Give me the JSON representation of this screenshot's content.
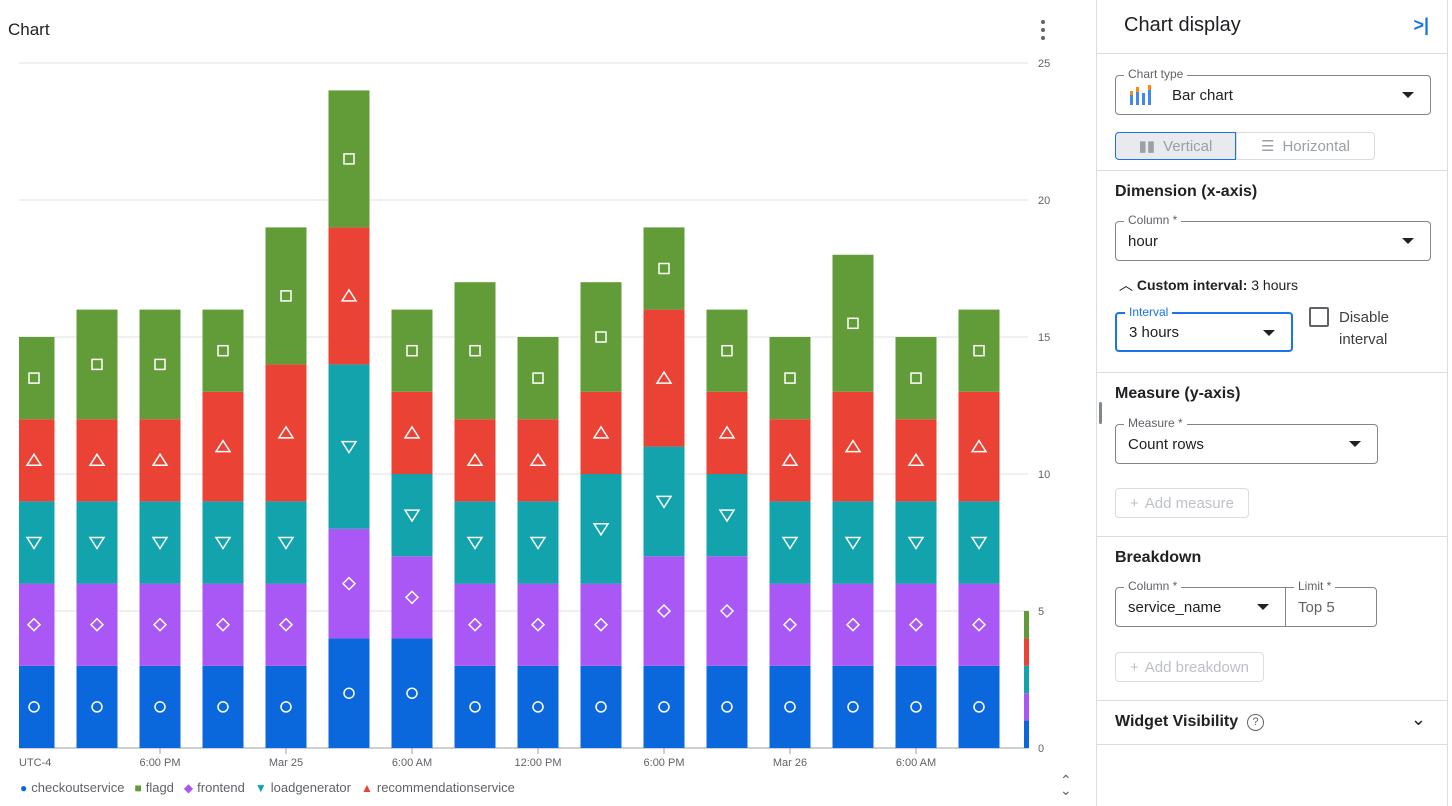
{
  "chart": {
    "title": "Chart",
    "legend": [
      {
        "name": "checkoutservice",
        "color": "#0b67dc",
        "shape": "circle"
      },
      {
        "name": "flagd",
        "color": "#629c38",
        "shape": "square"
      },
      {
        "name": "frontend",
        "color": "#a957f5",
        "shape": "diamond"
      },
      {
        "name": "loadgenerator",
        "color": "#12a3ad",
        "shape": "triangle-down"
      },
      {
        "name": "recommendationservice",
        "color": "#ea4335",
        "shape": "triangle-up"
      }
    ]
  },
  "chart_data": {
    "type": "bar",
    "stacked": true,
    "x_tick_labels": [
      {
        "index": 0,
        "label": "UTC-4"
      },
      {
        "index": 2,
        "label": "6:00 PM"
      },
      {
        "index": 4,
        "label": "Mar 25"
      },
      {
        "index": 6,
        "label": "6:00 AM"
      },
      {
        "index": 8,
        "label": "12:00 PM"
      },
      {
        "index": 10,
        "label": "6:00 PM"
      },
      {
        "index": 12,
        "label": "Mar 26"
      },
      {
        "index": 14,
        "label": "6:00 AM"
      }
    ],
    "y_ticks": [
      0,
      5,
      10,
      15,
      20,
      25
    ],
    "ylim": [
      0,
      25
    ],
    "grid": true,
    "legend_position": "bottom",
    "series": [
      {
        "name": "checkoutservice",
        "values": [
          3,
          3,
          3,
          3,
          3,
          4,
          4,
          3,
          3,
          3,
          3,
          3,
          3,
          3,
          3,
          3
        ]
      },
      {
        "name": "frontend",
        "values": [
          3,
          3,
          3,
          3,
          3,
          4,
          3,
          3,
          3,
          3,
          4,
          4,
          3,
          3,
          3,
          3
        ]
      },
      {
        "name": "loadgenerator",
        "values": [
          3,
          3,
          3,
          3,
          3,
          6,
          3,
          3,
          3,
          4,
          4,
          3,
          3,
          3,
          3,
          3
        ]
      },
      {
        "name": "recommendationservice",
        "values": [
          3,
          3,
          3,
          4,
          5,
          5,
          3,
          3,
          3,
          3,
          5,
          3,
          3,
          4,
          3,
          4
        ]
      },
      {
        "name": "flagd",
        "values": [
          3,
          4,
          4,
          3,
          5,
          5,
          3,
          5,
          3,
          4,
          3,
          3,
          3,
          5,
          3,
          3
        ]
      }
    ]
  },
  "panel": {
    "title": "Chart display",
    "chart_type_label": "Chart type",
    "chart_type": "Bar chart",
    "vertical": "Vertical",
    "horizontal": "Horizontal",
    "dimension": "Dimension (x-axis)",
    "column_label": "Column *",
    "column": "hour",
    "custom_interval_bold": "Custom interval:",
    "custom_interval_value": "3 hours",
    "interval_label": "Interval",
    "interval": "3 hours",
    "disable_interval": "Disable interval",
    "measure_heading": "Measure (y-axis)",
    "measure_label": "Measure *",
    "measure": "Count rows",
    "add_measure": "Add measure",
    "breakdown": "Breakdown",
    "bd_column_label": "Column *",
    "bd_column": "service_name",
    "limit_label": "Limit *",
    "limit": "Top 5",
    "add_breakdown": "Add breakdown",
    "widget_visibility": "Widget Visibility"
  }
}
